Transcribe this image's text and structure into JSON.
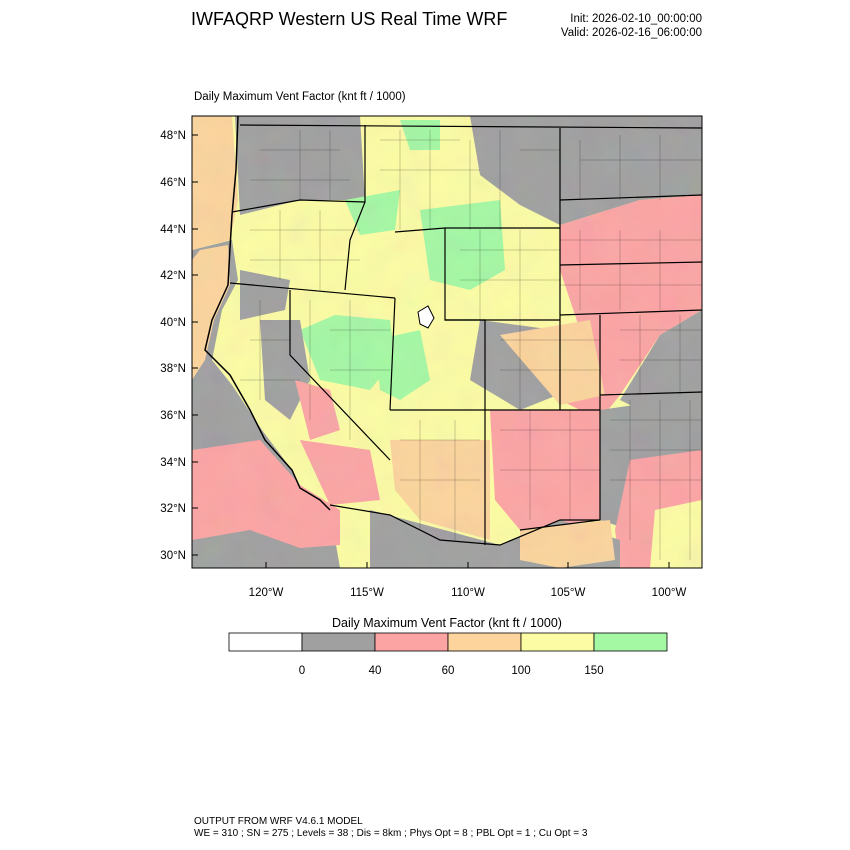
{
  "header": {
    "title": "IWFAQRP Western US Real Time WRF",
    "init": "Init: 2026-02-10_00:00:00",
    "valid": "Valid: 2026-02-16_06:00:00"
  },
  "map": {
    "plot_title": "Daily Maximum Vent Factor   (knt ft / 1000)",
    "lat_ticks": [
      "48°N",
      "46°N",
      "44°N",
      "42°N",
      "40°N",
      "38°N",
      "36°N",
      "34°N",
      "32°N",
      "30°N"
    ],
    "lon_ticks": [
      "120°W",
      "115°W",
      "110°W",
      "105°W",
      "100°W"
    ],
    "region_colors": {
      "below_0": "#ffffff",
      "0_40": "#a0a0a0",
      "40_60": "#fca4a4",
      "60_100": "#fcd49c",
      "100_150": "#fcfca4",
      "150_plus": "#a4f8a4"
    }
  },
  "colorbar": {
    "title": "Daily Maximum Vent Factor  (knt ft / 1000)",
    "bins": [
      {
        "color": "#ffffff"
      },
      {
        "color": "#a0a0a0"
      },
      {
        "color": "#fca4a4"
      },
      {
        "color": "#fcd49c"
      },
      {
        "color": "#fcfca4"
      },
      {
        "color": "#a4f8a4"
      }
    ],
    "labels": [
      "0",
      "40",
      "60",
      "100",
      "150"
    ]
  },
  "footer": {
    "line1": "OUTPUT FROM WRF V4.6.1 MODEL",
    "line2": "WE = 310 ; SN = 275 ; Levels = 38 ; Dis = 8km ; Phys Opt = 8 ; PBL Opt = 1 ; Cu Opt = 3"
  }
}
